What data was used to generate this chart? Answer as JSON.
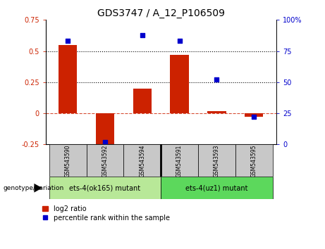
{
  "title": "GDS3747 / A_12_P106509",
  "samples": [
    "GSM543590",
    "GSM543592",
    "GSM543594",
    "GSM543591",
    "GSM543593",
    "GSM543595"
  ],
  "log2_ratio": [
    0.55,
    -0.3,
    0.2,
    0.47,
    0.02,
    -0.03
  ],
  "percentile_rank": [
    83,
    2,
    88,
    83,
    52,
    22
  ],
  "bar_color": "#cc2200",
  "dot_color": "#0000cc",
  "ylim_left": [
    -0.25,
    0.75
  ],
  "ylim_right": [
    0,
    100
  ],
  "yticks_left": [
    -0.25,
    0.0,
    0.25,
    0.5,
    0.75
  ],
  "yticks_right": [
    0,
    25,
    50,
    75,
    100
  ],
  "hline_dotted": [
    0.25,
    0.5
  ],
  "hline_dashed": 0.0,
  "group1_label": "ets-4(ok165) mutant",
  "group2_label": "ets-4(uz1) mutant",
  "group1_indices": [
    0,
    1,
    2
  ],
  "group2_indices": [
    3,
    4,
    5
  ],
  "group1_color": "#b8e898",
  "group2_color": "#5cd85c",
  "genotype_label": "genotype/variation",
  "legend_bar_label": "log2 ratio",
  "legend_dot_label": "percentile rank within the sample",
  "bar_width": 0.5,
  "tick_area_color": "#c8c8c8",
  "title_fontsize": 10,
  "axis_fontsize": 7,
  "label_fontsize": 7,
  "group_fontsize": 7,
  "legend_fontsize": 7
}
